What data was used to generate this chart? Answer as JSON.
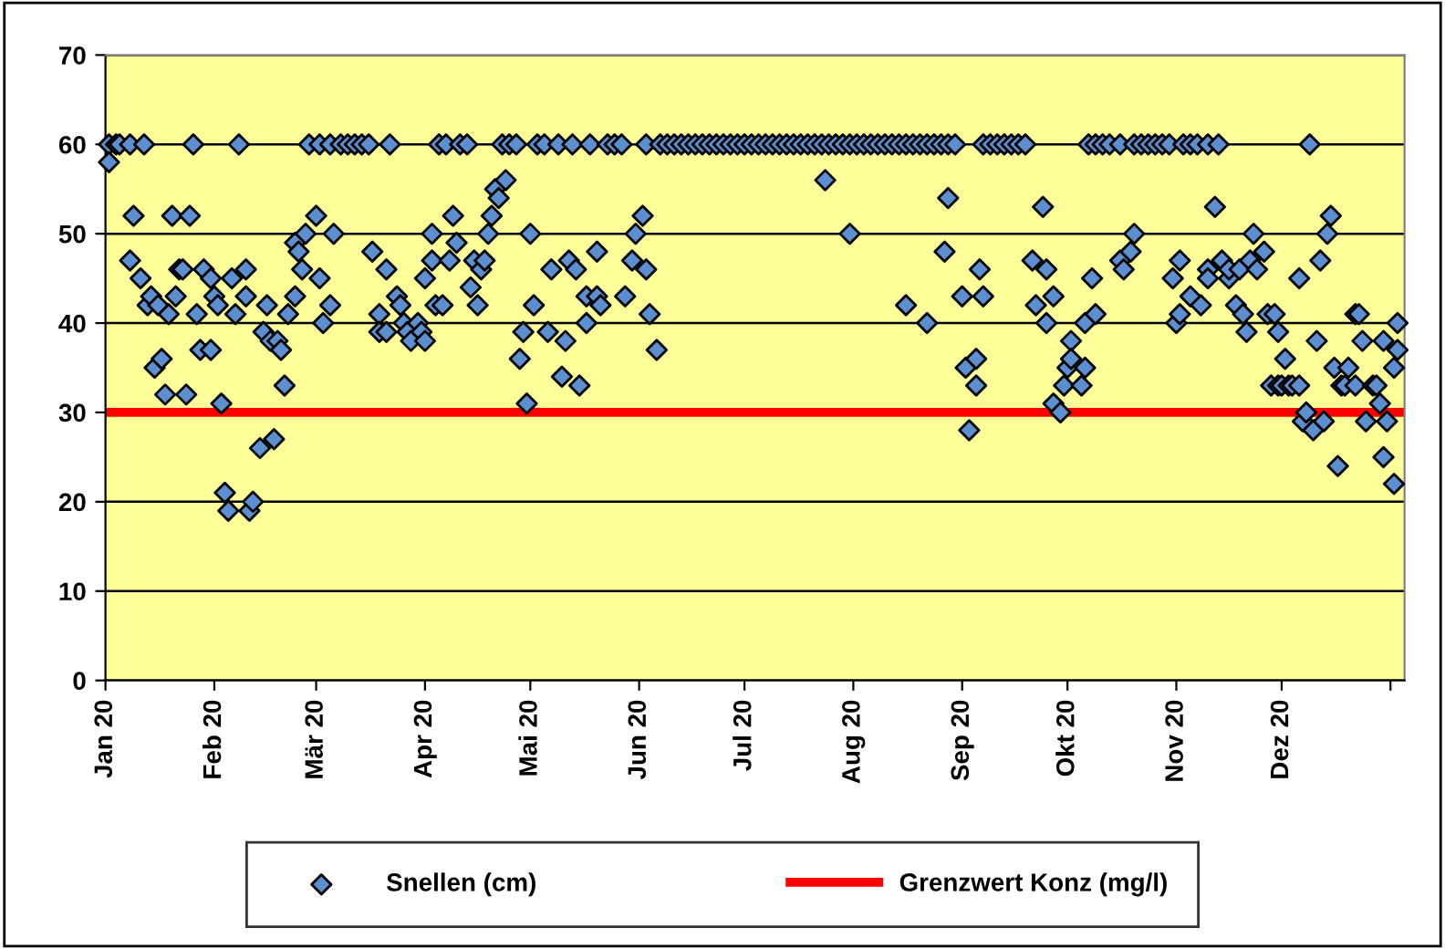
{
  "chart_data": {
    "type": "scatter",
    "xlim": [
      "2020-01-01",
      "2021-01-05"
    ],
    "xticks": [
      {
        "value": "2020-01-01",
        "label": "Jan 20"
      },
      {
        "value": "2020-02-01",
        "label": "Feb 20"
      },
      {
        "value": "2020-03-01",
        "label": "Mär 20"
      },
      {
        "value": "2020-04-01",
        "label": "Apr 20"
      },
      {
        "value": "2020-05-01",
        "label": "Mai 20"
      },
      {
        "value": "2020-06-01",
        "label": "Jun 20"
      },
      {
        "value": "2020-07-01",
        "label": "Jul 20"
      },
      {
        "value": "2020-08-01",
        "label": "Aug 20"
      },
      {
        "value": "2020-09-01",
        "label": "Sep 20"
      },
      {
        "value": "2020-10-01",
        "label": "Okt 20"
      },
      {
        "value": "2020-11-01",
        "label": "Nov 20"
      },
      {
        "value": "2020-12-01",
        "label": "Dez 20"
      },
      {
        "value": "2021-01-01",
        "label": null
      }
    ],
    "ylim": [
      0,
      70
    ],
    "yticks": [
      0,
      10,
      20,
      30,
      40,
      50,
      60,
      70
    ],
    "grid": "y",
    "legend": "bottom",
    "series": [
      {
        "name": "Snellen (cm)",
        "marker": "diamond",
        "color": "#5b8fd0",
        "x": [
          "2020-01-02",
          "2020-01-02",
          "2020-01-04",
          "2020-01-05",
          "2020-01-08",
          "2020-01-08",
          "2020-01-09",
          "2020-01-11",
          "2020-01-12",
          "2020-01-13",
          "2020-01-14",
          "2020-01-15",
          "2020-01-16",
          "2020-01-17",
          "2020-01-18",
          "2020-01-19",
          "2020-01-20",
          "2020-01-21",
          "2020-01-22",
          "2020-01-23",
          "2020-01-24",
          "2020-01-25",
          "2020-01-26",
          "2020-01-27",
          "2020-01-28",
          "2020-01-29",
          "2020-01-31",
          "2020-01-31",
          "2020-02-01",
          "2020-02-02",
          "2020-02-03",
          "2020-02-04",
          "2020-02-05",
          "2020-02-06",
          "2020-02-07",
          "2020-02-08",
          "2020-02-10",
          "2020-02-10",
          "2020-02-11",
          "2020-02-12",
          "2020-02-14",
          "2020-02-15",
          "2020-02-16",
          "2020-02-17",
          "2020-02-18",
          "2020-02-19",
          "2020-02-20",
          "2020-02-21",
          "2020-02-22",
          "2020-02-24",
          "2020-02-24",
          "2020-02-25",
          "2020-02-26",
          "2020-02-27",
          "2020-02-28",
          "2020-03-01",
          "2020-03-02",
          "2020-03-02",
          "2020-03-03",
          "2020-03-05",
          "2020-03-05",
          "2020-03-06",
          "2020-03-08",
          "2020-03-10",
          "2020-03-12",
          "2020-03-14",
          "2020-03-16",
          "2020-03-17",
          "2020-03-19",
          "2020-03-19",
          "2020-03-21",
          "2020-03-21",
          "2020-03-22",
          "2020-03-24",
          "2020-03-25",
          "2020-03-26",
          "2020-03-27",
          "2020-03-28",
          "2020-03-30",
          "2020-03-31",
          "2020-04-01",
          "2020-04-01",
          "2020-04-03",
          "2020-04-03",
          "2020-04-04",
          "2020-04-05",
          "2020-04-06",
          "2020-04-07",
          "2020-04-08",
          "2020-04-09",
          "2020-04-10",
          "2020-04-11",
          "2020-04-13",
          "2020-04-14",
          "2020-04-15",
          "2020-04-16",
          "2020-04-17",
          "2020-04-18",
          "2020-04-19",
          "2020-04-20",
          "2020-04-21",
          "2020-04-22",
          "2020-04-23",
          "2020-04-24",
          "2020-04-25",
          "2020-04-27",
          "2020-04-28",
          "2020-04-29",
          "2020-04-30",
          "2020-05-01",
          "2020-05-02",
          "2020-05-03",
          "2020-05-05",
          "2020-05-06",
          "2020-05-07",
          "2020-05-09",
          "2020-05-10",
          "2020-05-11",
          "2020-05-12",
          "2020-05-13",
          "2020-05-14",
          "2020-05-15",
          "2020-05-17",
          "2020-05-17",
          "2020-05-18",
          "2020-05-20",
          "2020-05-20",
          "2020-05-21",
          "2020-05-23",
          "2020-05-25",
          "2020-05-27",
          "2020-05-28",
          "2020-05-30",
          "2020-05-31",
          "2020-06-02",
          "2020-06-03",
          "2020-06-03",
          "2020-06-04",
          "2020-06-06",
          "2020-06-07",
          "2020-06-09",
          "2020-06-11",
          "2020-06-13",
          "2020-06-15",
          "2020-06-17",
          "2020-06-19",
          "2020-06-21",
          "2020-06-23",
          "2020-06-25",
          "2020-06-27",
          "2020-06-29",
          "2020-07-01",
          "2020-07-03",
          "2020-07-05",
          "2020-07-07",
          "2020-07-09",
          "2020-07-11",
          "2020-07-13",
          "2020-07-15",
          "2020-07-17",
          "2020-07-19",
          "2020-07-21",
          "2020-07-23",
          "2020-07-24",
          "2020-07-25",
          "2020-07-27",
          "2020-07-29",
          "2020-07-31",
          "2020-07-31",
          "2020-08-02",
          "2020-08-04",
          "2020-08-06",
          "2020-08-08",
          "2020-08-10",
          "2020-08-12",
          "2020-08-14",
          "2020-08-16",
          "2020-08-16",
          "2020-08-18",
          "2020-08-20",
          "2020-08-22",
          "2020-08-22",
          "2020-08-24",
          "2020-08-26",
          "2020-08-27",
          "2020-08-28",
          "2020-08-28",
          "2020-08-30",
          "2020-09-01",
          "2020-09-02",
          "2020-09-03",
          "2020-09-05",
          "2020-09-05",
          "2020-09-06",
          "2020-09-07",
          "2020-09-07",
          "2020-09-09",
          "2020-09-11",
          "2020-09-13",
          "2020-09-15",
          "2020-09-17",
          "2020-09-19",
          "2020-09-21",
          "2020-09-22",
          "2020-09-24",
          "2020-09-25",
          "2020-09-25",
          "2020-09-27",
          "2020-09-27",
          "2020-09-29",
          "2020-09-30",
          "2020-10-01",
          "2020-10-02",
          "2020-10-02",
          "2020-10-05",
          "2020-10-06",
          "2020-10-06",
          "2020-10-07",
          "2020-10-08",
          "2020-10-09",
          "2020-10-09",
          "2020-10-11",
          "2020-10-13",
          "2020-10-16",
          "2020-10-16",
          "2020-10-17",
          "2020-10-19",
          "2020-10-20",
          "2020-10-20",
          "2020-10-22",
          "2020-10-24",
          "2020-10-26",
          "2020-10-28",
          "2020-10-30",
          "2020-10-31",
          "2020-11-01",
          "2020-11-02",
          "2020-11-02",
          "2020-11-03",
          "2020-11-05",
          "2020-11-05",
          "2020-11-07",
          "2020-11-08",
          "2020-11-10",
          "2020-11-10",
          "2020-11-10",
          "2020-11-12",
          "2020-11-13",
          "2020-11-14",
          "2020-11-16",
          "2020-11-16",
          "2020-11-18",
          "2020-11-19",
          "2020-11-20",
          "2020-11-21",
          "2020-11-22",
          "2020-11-23",
          "2020-11-24",
          "2020-11-26",
          "2020-11-27",
          "2020-11-28",
          "2020-11-29",
          "2020-11-30",
          "2020-11-30",
          "2020-12-01",
          "2020-12-02",
          "2020-12-03",
          "2020-12-04",
          "2020-12-06",
          "2020-12-06",
          "2020-12-07",
          "2020-12-08",
          "2020-12-09",
          "2020-12-10",
          "2020-12-11",
          "2020-12-12",
          "2020-12-13",
          "2020-12-14",
          "2020-12-15",
          "2020-12-16",
          "2020-12-17",
          "2020-12-18",
          "2020-12-19",
          "2020-12-20",
          "2020-12-22",
          "2020-12-22",
          "2020-12-23",
          "2020-12-24",
          "2020-12-25",
          "2020-12-27",
          "2020-12-28",
          "2020-12-29",
          "2020-12-30",
          "2020-12-30",
          "2020-12-31",
          "2021-01-02",
          "2021-01-02",
          "2021-01-03",
          "2021-01-03"
        ],
        "values": [
          60,
          58,
          60,
          60,
          60,
          47,
          52,
          45,
          60,
          42,
          43,
          35,
          42,
          36,
          32,
          41,
          52,
          43,
          46,
          46,
          32,
          52,
          60,
          41,
          37,
          46,
          45,
          37,
          43,
          42,
          31,
          21,
          19,
          45,
          41,
          60,
          43,
          46,
          19,
          20,
          26,
          39,
          42,
          38,
          27,
          38,
          37,
          33,
          41,
          43,
          49,
          48,
          46,
          50,
          60,
          52,
          60,
          45,
          40,
          60,
          42,
          50,
          60,
          60,
          60,
          60,
          60,
          48,
          41,
          39,
          46,
          39,
          60,
          43,
          42,
          40,
          39,
          38,
          40,
          39,
          38,
          45,
          47,
          50,
          42,
          60,
          42,
          60,
          47,
          52,
          49,
          60,
          60,
          44,
          47,
          42,
          46,
          47,
          50,
          52,
          55,
          54,
          60,
          56,
          60,
          60,
          36,
          39,
          31,
          50,
          42,
          60,
          60,
          39,
          46,
          60,
          34,
          38,
          47,
          60,
          46,
          33,
          43,
          40,
          60,
          48,
          43,
          42,
          60,
          60,
          60,
          43,
          47,
          50,
          52,
          60,
          46,
          41,
          37,
          60,
          60,
          60,
          60,
          60,
          60,
          60,
          60,
          60,
          60,
          60,
          60,
          60,
          60,
          60,
          60,
          60,
          60,
          60,
          60,
          60,
          60,
          60,
          60,
          56,
          60,
          60,
          60,
          60,
          50,
          60,
          60,
          60,
          60,
          60,
          60,
          60,
          60,
          42,
          60,
          60,
          60,
          40,
          60,
          60,
          48,
          60,
          54,
          60,
          43,
          35,
          28,
          36,
          33,
          46,
          60,
          43,
          60,
          60,
          60,
          60,
          60,
          60,
          47,
          42,
          53,
          46,
          40,
          43,
          31,
          30,
          33,
          35,
          38,
          36,
          33,
          40,
          35,
          60,
          45,
          60,
          41,
          60,
          60,
          60,
          47,
          46,
          48,
          60,
          50,
          60,
          60,
          60,
          60,
          60,
          45,
          40,
          47,
          41,
          60,
          60,
          43,
          60,
          42,
          60,
          46,
          45,
          53,
          60,
          47,
          45,
          46,
          42,
          46,
          41,
          39,
          47,
          50,
          46,
          48,
          41,
          33,
          41,
          39,
          33,
          33,
          36,
          33,
          33,
          45,
          33,
          29,
          30,
          60,
          28,
          38,
          47,
          29,
          50,
          52,
          35,
          24,
          33,
          33,
          35,
          41,
          33,
          41,
          38,
          29,
          33,
          33,
          31,
          38,
          25,
          29,
          35,
          22,
          40,
          37
        ]
      },
      {
        "name": "Grenzwert Konz (mg/l)",
        "type": "line",
        "marker": "none",
        "line_style": "solid",
        "color": "#ff0000",
        "x": [
          "2020-01-01",
          "2021-01-05"
        ],
        "values": [
          30,
          30
        ]
      }
    ]
  }
}
